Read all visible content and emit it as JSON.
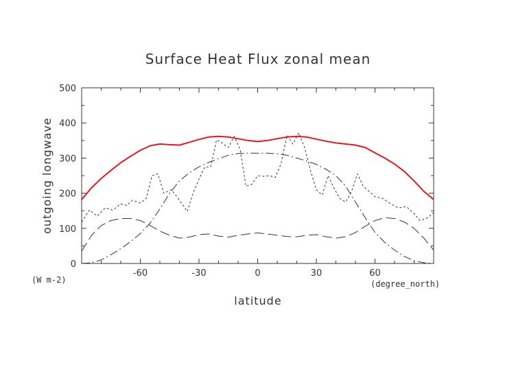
{
  "chart_data": {
    "type": "line",
    "title": "Surface Heat Flux zonal mean",
    "xlabel": "latitude",
    "ylabel": "outgoing longwave",
    "x_units": "(degree_north)",
    "y_units": "(W m-2)",
    "xlim": [
      -90,
      90
    ],
    "ylim": [
      0,
      500
    ],
    "x_ticks": [
      -60,
      -30,
      0,
      30,
      60
    ],
    "y_ticks": [
      0,
      100,
      200,
      300,
      400,
      500
    ],
    "x_tick_labels": [
      "-60",
      "-30",
      "0",
      "30",
      "60"
    ],
    "y_tick_labels": [
      "0",
      "100",
      "200",
      "300",
      "400",
      "500"
    ],
    "grid": false,
    "legend": "none",
    "series": [
      {
        "style": "solid",
        "color": "#e8141c",
        "points": [
          [
            -90,
            182
          ],
          [
            -85,
            215
          ],
          [
            -80,
            242
          ],
          [
            -75,
            265
          ],
          [
            -70,
            287
          ],
          [
            -65,
            305
          ],
          [
            -60,
            322
          ],
          [
            -55,
            335
          ],
          [
            -50,
            340
          ],
          [
            -45,
            338
          ],
          [
            -40,
            337
          ],
          [
            -35,
            345
          ],
          [
            -30,
            353
          ],
          [
            -25,
            360
          ],
          [
            -20,
            362
          ],
          [
            -15,
            360
          ],
          [
            -10,
            355
          ],
          [
            -5,
            350
          ],
          [
            0,
            347
          ],
          [
            5,
            350
          ],
          [
            10,
            355
          ],
          [
            15,
            360
          ],
          [
            20,
            362
          ],
          [
            25,
            360
          ],
          [
            30,
            354
          ],
          [
            35,
            348
          ],
          [
            40,
            343
          ],
          [
            45,
            340
          ],
          [
            50,
            337
          ],
          [
            55,
            330
          ],
          [
            60,
            315
          ],
          [
            65,
            300
          ],
          [
            70,
            283
          ],
          [
            75,
            262
          ],
          [
            80,
            235
          ],
          [
            85,
            205
          ],
          [
            90,
            182
          ]
        ]
      },
      {
        "style": "dashed",
        "color": "#333333",
        "points": [
          [
            -90,
            118
          ],
          [
            -86,
            152
          ],
          [
            -82,
            135
          ],
          [
            -78,
            158
          ],
          [
            -74,
            152
          ],
          [
            -70,
            170
          ],
          [
            -67,
            165
          ],
          [
            -64,
            180
          ],
          [
            -60,
            172
          ],
          [
            -57,
            185
          ],
          [
            -54,
            250
          ],
          [
            -51,
            255
          ],
          [
            -48,
            200
          ],
          [
            -44,
            210
          ],
          [
            -40,
            180
          ],
          [
            -36,
            148
          ],
          [
            -33,
            200
          ],
          [
            -30,
            240
          ],
          [
            -27,
            275
          ],
          [
            -24,
            275
          ],
          [
            -21,
            352
          ],
          [
            -18,
            342
          ],
          [
            -15,
            330
          ],
          [
            -12,
            362
          ],
          [
            -9,
            325
          ],
          [
            -6,
            220
          ],
          [
            -3,
            225
          ],
          [
            0,
            250
          ],
          [
            3,
            248
          ],
          [
            6,
            250
          ],
          [
            9,
            245
          ],
          [
            12,
            285
          ],
          [
            15,
            365
          ],
          [
            18,
            340
          ],
          [
            21,
            372
          ],
          [
            24,
            330
          ],
          [
            27,
            265
          ],
          [
            30,
            210
          ],
          [
            33,
            195
          ],
          [
            36,
            250
          ],
          [
            39,
            215
          ],
          [
            42,
            185
          ],
          [
            45,
            175
          ],
          [
            48,
            205
          ],
          [
            51,
            255
          ],
          [
            54,
            220
          ],
          [
            57,
            205
          ],
          [
            60,
            190
          ],
          [
            64,
            185
          ],
          [
            68,
            170
          ],
          [
            72,
            158
          ],
          [
            76,
            162
          ],
          [
            80,
            142
          ],
          [
            83,
            122
          ],
          [
            87,
            130
          ],
          [
            90,
            145
          ]
        ]
      },
      {
        "style": "long-dash",
        "color": "#333333",
        "points": [
          [
            -90,
            35
          ],
          [
            -85,
            80
          ],
          [
            -80,
            108
          ],
          [
            -75,
            122
          ],
          [
            -70,
            128
          ],
          [
            -65,
            128
          ],
          [
            -60,
            122
          ],
          [
            -55,
            108
          ],
          [
            -50,
            92
          ],
          [
            -45,
            80
          ],
          [
            -40,
            72
          ],
          [
            -35,
            75
          ],
          [
            -30,
            82
          ],
          [
            -25,
            84
          ],
          [
            -20,
            78
          ],
          [
            -15,
            75
          ],
          [
            -10,
            80
          ],
          [
            -5,
            84
          ],
          [
            0,
            87
          ],
          [
            5,
            84
          ],
          [
            10,
            80
          ],
          [
            15,
            77
          ],
          [
            20,
            76
          ],
          [
            25,
            80
          ],
          [
            30,
            82
          ],
          [
            35,
            76
          ],
          [
            40,
            72
          ],
          [
            45,
            76
          ],
          [
            50,
            88
          ],
          [
            55,
            106
          ],
          [
            60,
            122
          ],
          [
            65,
            130
          ],
          [
            70,
            128
          ],
          [
            75,
            118
          ],
          [
            80,
            100
          ],
          [
            85,
            72
          ],
          [
            90,
            38
          ]
        ]
      },
      {
        "style": "dash-dot",
        "color": "#333333",
        "points": [
          [
            -90,
            0
          ],
          [
            -85,
            2
          ],
          [
            -80,
            10
          ],
          [
            -75,
            25
          ],
          [
            -70,
            42
          ],
          [
            -65,
            62
          ],
          [
            -60,
            85
          ],
          [
            -55,
            115
          ],
          [
            -50,
            155
          ],
          [
            -45,
            200
          ],
          [
            -40,
            235
          ],
          [
            -35,
            258
          ],
          [
            -30,
            275
          ],
          [
            -25,
            288
          ],
          [
            -20,
            298
          ],
          [
            -15,
            308
          ],
          [
            -10,
            313
          ],
          [
            -5,
            314
          ],
          [
            0,
            314
          ],
          [
            5,
            314
          ],
          [
            10,
            312
          ],
          [
            15,
            308
          ],
          [
            20,
            300
          ],
          [
            25,
            292
          ],
          [
            30,
            282
          ],
          [
            35,
            268
          ],
          [
            40,
            250
          ],
          [
            45,
            220
          ],
          [
            50,
            175
          ],
          [
            55,
            130
          ],
          [
            60,
            88
          ],
          [
            65,
            60
          ],
          [
            70,
            38
          ],
          [
            75,
            20
          ],
          [
            80,
            8
          ],
          [
            85,
            2
          ],
          [
            90,
            0
          ]
        ]
      }
    ]
  }
}
